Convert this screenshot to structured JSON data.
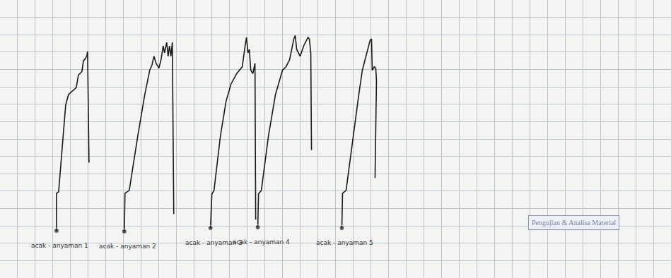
{
  "chart_data": {
    "type": "line",
    "annotations": [
      "Pengujian & Analisa Material"
    ],
    "grid": true,
    "tick_labels": false,
    "xlim": [
      0,
      950
    ],
    "xticks": [
      0,
      25,
      50,
      75,
      100,
      125,
      150,
      175,
      200,
      225,
      250,
      275,
      300,
      325,
      350,
      375,
      400,
      425,
      450,
      475,
      500,
      525,
      550,
      575,
      600,
      625,
      650,
      675,
      700,
      725,
      750,
      775,
      800,
      825,
      850,
      875,
      900,
      925,
      950
    ],
    "ylim": [
      0,
      400
    ],
    "yticks": [
      0,
      25,
      50,
      75,
      100,
      125,
      150,
      175,
      200,
      225,
      250,
      275,
      300,
      325,
      350,
      375,
      400
    ],
    "series": [
      {
        "name": "acak - anyaman 1",
        "color": "#1a1a1a",
        "marker": "circle",
        "line_style": "solid",
        "x": [
          80,
          80,
          83,
          88,
          93,
          97,
          103,
          108,
          111,
          116,
          118,
          121,
          123,
          124,
          126
        ],
        "values": [
          68,
          122,
          124,
          184,
          249,
          264,
          269,
          274,
          292,
          297,
          312,
          316,
          320,
          326,
          166
        ]
      },
      {
        "name": "acak - anyaman 2",
        "color": "#1a1a1a",
        "marker": "circle",
        "line_style": "solid",
        "x": [
          176,
          177,
          183,
          195,
          205,
          212,
          215,
          218,
          221,
          225,
          228,
          231,
          233,
          236,
          238,
          240,
          242,
          244,
          246
        ],
        "values": [
          67,
          122,
          126,
          204,
          264,
          299,
          306,
          319,
          309,
          302,
          314,
          334,
          324,
          339,
          319,
          334,
          319,
          339,
          92
        ]
      },
      {
        "name": "acak - anyaman 3",
        "color": "#1a1a1a",
        "marker": "circle",
        "line_style": "solid",
        "x": [
          298,
          300,
          303,
          312,
          320,
          327,
          335,
          343,
          347,
          349,
          351,
          353,
          355,
          358,
          361,
          362
        ],
        "values": [
          72,
          121,
          126,
          204,
          254,
          279,
          294,
          304,
          334,
          346,
          324,
          329,
          299,
          294,
          309,
          84
        ]
      },
      {
        "name": "acak - anyaman 4",
        "color": "#1a1a1a",
        "marker": "circle",
        "line_style": "solid",
        "x": [
          365,
          366,
          370,
          380,
          390,
          400,
          405,
          410,
          416,
          418,
          420,
          425,
          430,
          436,
          438,
          440,
          441
        ],
        "values": [
          73,
          121,
          126,
          204,
          264,
          299,
          304,
          314,
          344,
          349,
          329,
          319,
          334,
          346,
          344,
          324,
          184
        ]
      },
      {
        "name": "acak - anyaman 5",
        "color": "#1a1a1a",
        "marker": "circle",
        "line_style": "solid",
        "x": [
          484,
          485,
          490,
          500,
          508,
          513,
          517,
          521,
          524,
          526,
          527,
          530,
          532,
          533,
          531
        ],
        "values": [
          72,
          122,
          126,
          204,
          264,
          299,
          314,
          331,
          342,
          344,
          299,
          304,
          302,
          284,
          144
        ]
      }
    ]
  }
}
